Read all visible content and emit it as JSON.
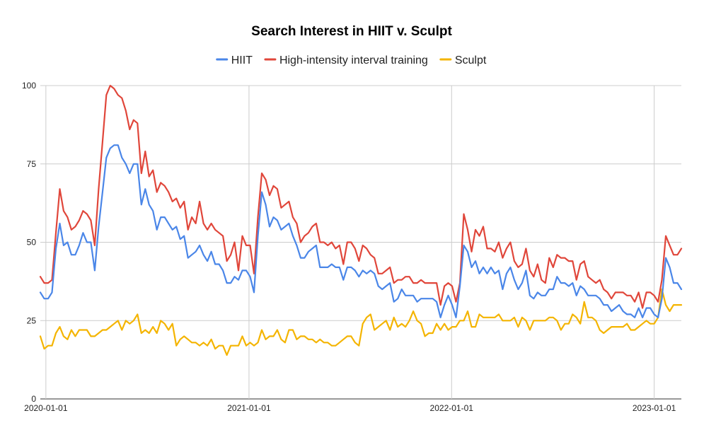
{
  "chart_data": {
    "type": "line",
    "title": "Search Interest in HIIT v. Sculpt",
    "xlabel": "",
    "ylabel": "",
    "ylim": [
      0,
      100
    ],
    "y_ticks": [
      0,
      25,
      50,
      75,
      100
    ],
    "x_start": "2019-12-22",
    "x_step_days": 7,
    "x_ticks": [
      {
        "label": "2020-01-01",
        "date": "2020-01-01"
      },
      {
        "label": "2021-01-01",
        "date": "2021-01-01"
      },
      {
        "label": "2022-01-01",
        "date": "2022-01-01"
      },
      {
        "label": "2023-01-01",
        "date": "2023-01-01"
      }
    ],
    "grid": true,
    "legend_position": "top",
    "series": [
      {
        "name": "HIIT",
        "color": "#4a86e8",
        "values": [
          34,
          32,
          32,
          34,
          48,
          56,
          49,
          50,
          46,
          46,
          49,
          53,
          50,
          50,
          41,
          55,
          66,
          77,
          80,
          81,
          81,
          77,
          75,
          72,
          75,
          75,
          62,
          67,
          62,
          60,
          54,
          58,
          58,
          56,
          54,
          55,
          51,
          52,
          45,
          46,
          47,
          49,
          46,
          44,
          47,
          43,
          43,
          41,
          37,
          37,
          39,
          38,
          41,
          41,
          39,
          34,
          52,
          66,
          62,
          55,
          58,
          57,
          54,
          55,
          56,
          52,
          49,
          45,
          45,
          47,
          48,
          49,
          42,
          42,
          42,
          43,
          42,
          42,
          38,
          42,
          42,
          41,
          39,
          41,
          40,
          41,
          40,
          36,
          35,
          36,
          37,
          31,
          32,
          35,
          33,
          33,
          33,
          31,
          32,
          32,
          32,
          32,
          31,
          26,
          30,
          33,
          30,
          26,
          36,
          49,
          47,
          42,
          44,
          40,
          42,
          40,
          42,
          40,
          41,
          35,
          40,
          42,
          38,
          35,
          37,
          41,
          33,
          32,
          34,
          33,
          33,
          35,
          35,
          39,
          37,
          37,
          36,
          37,
          33,
          36,
          35,
          33,
          33,
          33,
          32,
          30,
          30,
          28,
          29,
          30,
          28,
          27,
          27,
          26,
          29,
          26,
          29,
          29,
          27,
          26,
          32,
          45,
          42,
          37,
          37,
          35
        ]
      },
      {
        "name": "High-intensity interval training",
        "color": "#e0463a",
        "values": [
          39,
          37,
          37,
          38,
          53,
          67,
          60,
          58,
          54,
          55,
          57,
          60,
          59,
          57,
          49,
          67,
          82,
          97,
          100,
          99,
          97,
          96,
          92,
          86,
          89,
          88,
          72,
          79,
          71,
          73,
          66,
          69,
          68,
          66,
          63,
          64,
          61,
          63,
          54,
          58,
          56,
          63,
          56,
          54,
          56,
          54,
          53,
          52,
          44,
          46,
          50,
          41,
          52,
          49,
          49,
          40,
          58,
          72,
          70,
          65,
          68,
          67,
          61,
          62,
          63,
          58,
          56,
          50,
          52,
          53,
          55,
          56,
          50,
          50,
          49,
          50,
          48,
          49,
          43,
          50,
          50,
          48,
          44,
          49,
          48,
          46,
          45,
          40,
          40,
          41,
          42,
          37,
          38,
          38,
          39,
          39,
          37,
          37,
          38,
          37,
          37,
          37,
          37,
          30,
          36,
          37,
          36,
          31,
          37,
          59,
          54,
          47,
          54,
          52,
          55,
          48,
          48,
          47,
          50,
          45,
          48,
          50,
          44,
          42,
          43,
          48,
          41,
          39,
          43,
          38,
          37,
          45,
          42,
          46,
          45,
          45,
          44,
          44,
          38,
          43,
          44,
          39,
          38,
          37,
          38,
          35,
          34,
          32,
          34,
          34,
          34,
          33,
          33,
          31,
          34,
          29,
          34,
          34,
          33,
          31,
          38,
          52,
          49,
          46,
          46,
          48
        ]
      },
      {
        "name": "Sculpt",
        "color": "#f4b400",
        "values": [
          20,
          16,
          17,
          17,
          21,
          23,
          20,
          19,
          22,
          20,
          22,
          22,
          22,
          20,
          20,
          21,
          22,
          22,
          23,
          24,
          25,
          22,
          25,
          24,
          25,
          27,
          21,
          22,
          21,
          23,
          21,
          25,
          24,
          22,
          24,
          17,
          19,
          20,
          19,
          18,
          18,
          17,
          18,
          17,
          19,
          16,
          17,
          17,
          14,
          17,
          17,
          17,
          20,
          17,
          18,
          17,
          18,
          22,
          19,
          20,
          20,
          22,
          19,
          18,
          22,
          22,
          19,
          20,
          20,
          19,
          19,
          18,
          19,
          18,
          18,
          17,
          17,
          18,
          19,
          20,
          20,
          18,
          17,
          24,
          26,
          27,
          22,
          23,
          24,
          25,
          22,
          26,
          23,
          24,
          23,
          25,
          28,
          25,
          24,
          20,
          21,
          21,
          24,
          22,
          24,
          22,
          23,
          23,
          25,
          25,
          28,
          23,
          23,
          27,
          26,
          26,
          26,
          26,
          27,
          25,
          25,
          25,
          26,
          23,
          26,
          25,
          22,
          25,
          25,
          25,
          25,
          26,
          26,
          25,
          22,
          24,
          24,
          27,
          26,
          24,
          31,
          26,
          26,
          25,
          22,
          21,
          22,
          23,
          23,
          23,
          23,
          24,
          22,
          22,
          23,
          24,
          25,
          24,
          24,
          26,
          35,
          30,
          28,
          30,
          30,
          30
        ]
      }
    ]
  }
}
